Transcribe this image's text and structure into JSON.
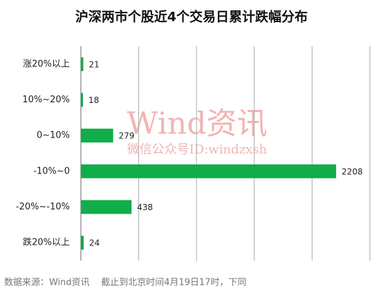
{
  "chart_data": {
    "type": "hbar",
    "title": "沪深两市个股近4个交易日累计跌幅分布",
    "categories": [
      "涨20%以上",
      "10%~20%",
      "0~10%",
      "-10%~0",
      "-20%~-10%",
      "跌20%以上"
    ],
    "values": [
      21,
      18,
      279,
      2208,
      438,
      24
    ],
    "color": "#10ad4a",
    "xlim": [
      0,
      2500
    ],
    "xticks": [
      0,
      500,
      1000,
      1500,
      2000,
      2500
    ],
    "tick_labels": false,
    "grid": true,
    "watermark": [
      "Wind资讯",
      "微信公众号ID:windzxsh"
    ],
    "source": "数据来源：Wind资讯    截止到北京时间4月19日17时，下同"
  }
}
